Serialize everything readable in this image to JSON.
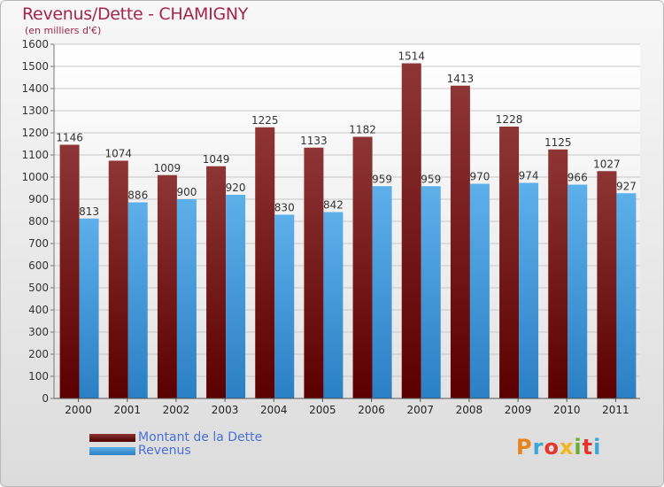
{
  "header": {
    "title": "Revenus/Dette - CHAMIGNY",
    "subtitle": "(en milliers d'€)"
  },
  "chart_data": {
    "type": "bar",
    "title": "Revenus/Dette - CHAMIGNY",
    "ylabel": "(en milliers d'€)",
    "xlabel": "",
    "categories": [
      "2000",
      "2001",
      "2002",
      "2003",
      "2004",
      "2005",
      "2006",
      "2007",
      "2008",
      "2009",
      "2010",
      "2011"
    ],
    "series": [
      {
        "name": "Montant de la Dette",
        "color": "#7a1e1e",
        "values": [
          1146,
          1074,
          1009,
          1049,
          1225,
          1133,
          1182,
          1514,
          1413,
          1228,
          1125,
          1027
        ]
      },
      {
        "name": "Revenus",
        "color": "#4a9fe0",
        "values": [
          813,
          886,
          900,
          920,
          830,
          842,
          959,
          959,
          970,
          974,
          966,
          927
        ]
      }
    ],
    "ylim": [
      0,
      1600
    ],
    "yticks": [
      0,
      100,
      200,
      300,
      400,
      500,
      600,
      700,
      800,
      900,
      1000,
      1100,
      1200,
      1300,
      1400,
      1500,
      1600
    ],
    "grid": true,
    "legend_position": "bottom-left"
  },
  "legend": {
    "dette_label": "Montant de la Dette",
    "revenus_label": "Revenus"
  },
  "logo": {
    "text": "Proxiti",
    "colors": [
      "#e8841f",
      "#3aa7d8",
      "#e5352d",
      "#f2b51d",
      "#67b02e",
      "#e5352d",
      "#3aa7d8"
    ]
  }
}
